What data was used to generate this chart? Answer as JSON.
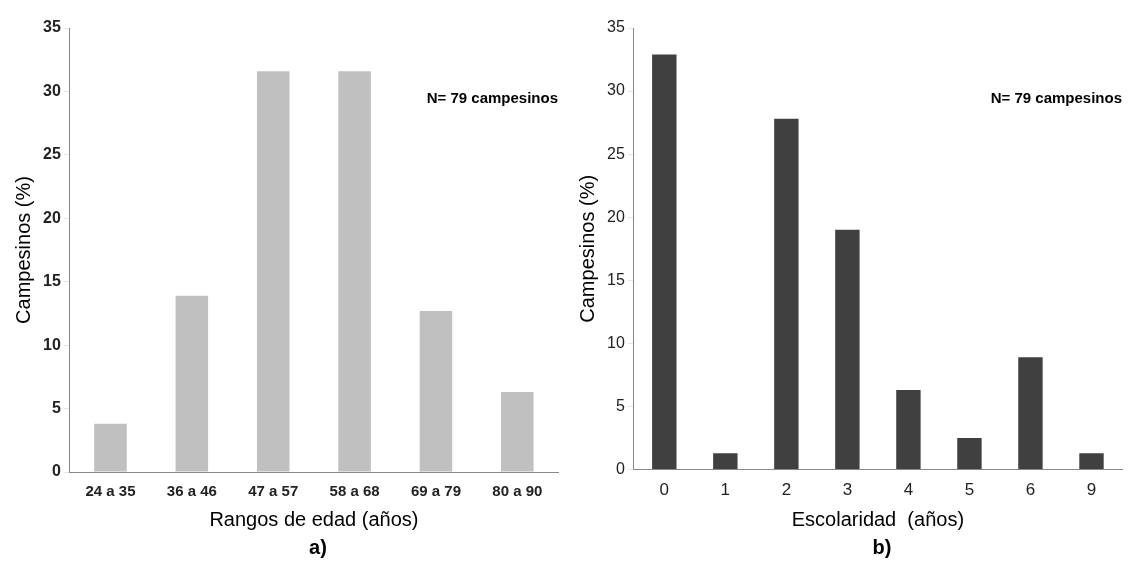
{
  "chart_data": [
    {
      "type": "bar",
      "xlabel": "Rangos de edad (años)",
      "ylabel": "Campesinos (%)",
      "categories": [
        "24 a 35",
        "36 a 46",
        "47 a 57",
        "58 a 68",
        "69 a 79",
        "80 a 90"
      ],
      "values": [
        3.8,
        13.9,
        31.6,
        31.6,
        12.7,
        6.3
      ],
      "color": "#c0c0c0",
      "ylim": [
        0,
        35
      ],
      "yticks": [
        0,
        5,
        10,
        15,
        20,
        25,
        30,
        35
      ],
      "grid": false,
      "annotations": [
        "N= 79 campesinos",
        "a)"
      ]
    },
    {
      "type": "bar",
      "xlabel": "Escolaridad  (años)",
      "ylabel": "Campesinos (%)",
      "categories": [
        "0",
        "1",
        "2",
        "3",
        "4",
        "5",
        "6",
        "9"
      ],
      "values": [
        32.9,
        1.3,
        27.8,
        19.0,
        6.3,
        2.5,
        8.9,
        1.3
      ],
      "color": "#404040",
      "ylim": [
        0,
        35
      ],
      "yticks": [
        0,
        5,
        10,
        15,
        20,
        25,
        30,
        35
      ],
      "grid": false,
      "annotations": [
        "N= 79 campesinos",
        "b)"
      ]
    }
  ]
}
